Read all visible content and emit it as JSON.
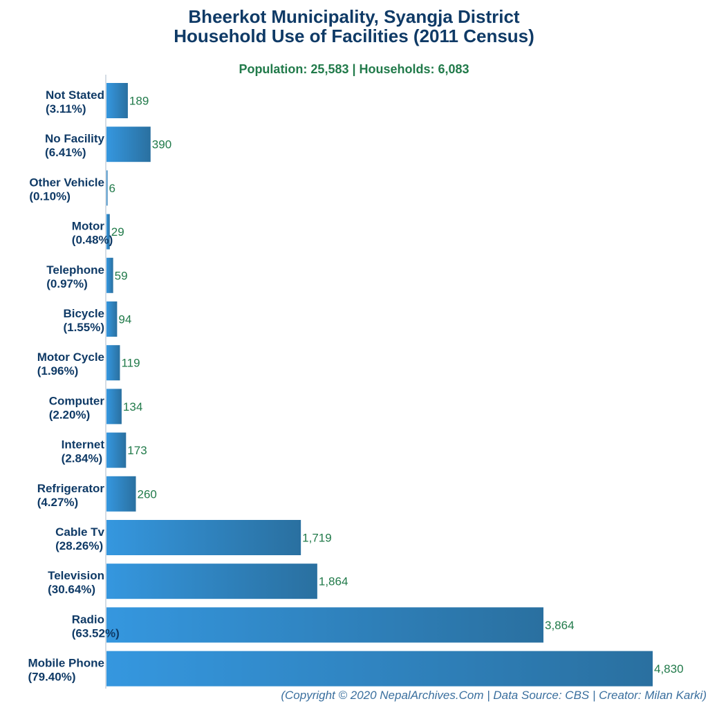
{
  "chart_data": {
    "type": "bar",
    "orientation": "horizontal",
    "title": [
      "Bheerkot Municipality, Syangja District",
      "Household Use of Facilities (2011 Census)"
    ],
    "subtitle": "Population: 25,583 | Households: 6,083",
    "categories": [
      "Not Stated",
      "No Facility",
      "Other Vehicle",
      "Motor",
      "Telephone",
      "Bicycle",
      "Motor Cycle",
      "Computer",
      "Internet",
      "Refrigerator",
      "Cable Tv",
      "Television",
      "Radio",
      "Mobile Phone"
    ],
    "percent_labels": [
      "(3.11%)",
      "(6.41%)",
      "(0.10%)",
      "(0.48%)",
      "(0.97%)",
      "(1.55%)",
      "(1.96%)",
      "(2.20%)",
      "(2.84%)",
      "(4.27%)",
      "(28.26%)",
      "(30.64%)",
      "(63.52%)",
      "(79.40%)"
    ],
    "values": [
      189,
      390,
      6,
      29,
      59,
      94,
      119,
      134,
      173,
      260,
      1719,
      1864,
      3864,
      4830
    ],
    "value_labels": [
      "189",
      "390",
      "6",
      "29",
      "59",
      "94",
      "119",
      "134",
      "173",
      "260",
      "1,719",
      "1,864",
      "3,864",
      "4,830"
    ],
    "xlim": [
      0,
      4830
    ],
    "xlabel": "",
    "ylabel": "",
    "grid": false,
    "legend": "none"
  },
  "colors": {
    "title": "#0f3a66",
    "subtitle": "#217a4a",
    "value_label": "#217a4a",
    "bar_light": "#3597df",
    "bar_dark": "#2a70a0",
    "footer": "#3a6f9e",
    "axis": "#aab8c8"
  },
  "footer": "(Copyright © 2020 NepalArchives.Com | Data Source: CBS | Creator: Milan Karki)"
}
